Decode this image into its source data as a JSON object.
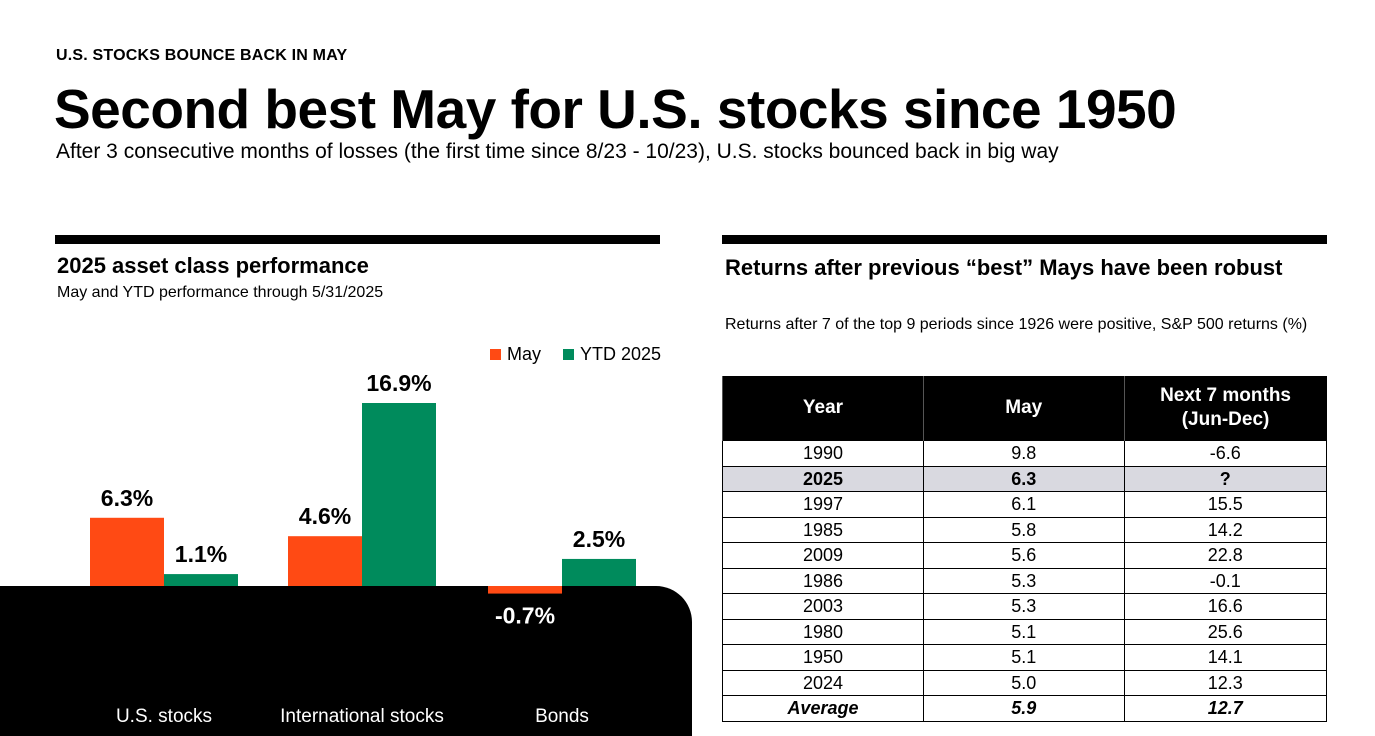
{
  "header": {
    "kicker": "U.S. STOCKS BOUNCE BACK IN MAY",
    "headline": "Second best May for U.S. stocks since 1950",
    "subhead": "After 3 consecutive months of losses (the first time since 8/23 - 10/23), U.S. stocks bounced back in big way"
  },
  "left_panel": {
    "title": "2025 asset class performance",
    "subtitle": "May and YTD performance through 5/31/2025"
  },
  "right_panel": {
    "title": "Returns after previous “best” Mays have been robust",
    "subtitle": "Returns after 7 of the top 9 periods since 1926 were positive, S&P 500 returns (%)"
  },
  "colors": {
    "may": "#ff4a14",
    "ytd": "#008b5c",
    "highlight_row": "#d9d9e0"
  },
  "chart_data": {
    "type": "bar",
    "title": "2025 asset class performance",
    "subtitle": "May and YTD performance through 5/31/2025",
    "categories": [
      "U.S. stocks",
      "International stocks",
      "Bonds"
    ],
    "series": [
      {
        "name": "May",
        "values": [
          6.3,
          4.6,
          -0.7
        ],
        "labels": [
          "6.3%",
          "4.6%",
          "-0.7%"
        ]
      },
      {
        "name": "YTD 2025",
        "values": [
          1.1,
          16.9,
          2.5
        ],
        "labels": [
          "1.1%",
          "16.9%",
          "2.5%"
        ]
      }
    ],
    "xlabel": "",
    "ylabel": "",
    "ylim": [
      -0.7,
      16.9
    ],
    "grid": false,
    "legend_position": "top-right"
  },
  "table": {
    "headers": [
      "Year",
      "May",
      "Next 7 months (Jun-Dec)"
    ],
    "header_lines": [
      [
        "Year"
      ],
      [
        "May"
      ],
      [
        "Next 7 months",
        "(Jun-Dec)"
      ]
    ],
    "rows": [
      [
        "1990",
        "9.8",
        "-6.6"
      ],
      [
        "2025",
        "6.3",
        "?"
      ],
      [
        "1997",
        "6.1",
        "15.5"
      ],
      [
        "1985",
        "5.8",
        "14.2"
      ],
      [
        "2009",
        "5.6",
        "22.8"
      ],
      [
        "1986",
        "5.3",
        "-0.1"
      ],
      [
        "2003",
        "5.3",
        "16.6"
      ],
      [
        "1980",
        "5.1",
        "25.6"
      ],
      [
        "1950",
        "5.1",
        "14.1"
      ],
      [
        "2024",
        "5.0",
        "12.3"
      ]
    ],
    "highlight_row_index": 1,
    "average": [
      "Average",
      "5.9",
      "12.7"
    ]
  }
}
